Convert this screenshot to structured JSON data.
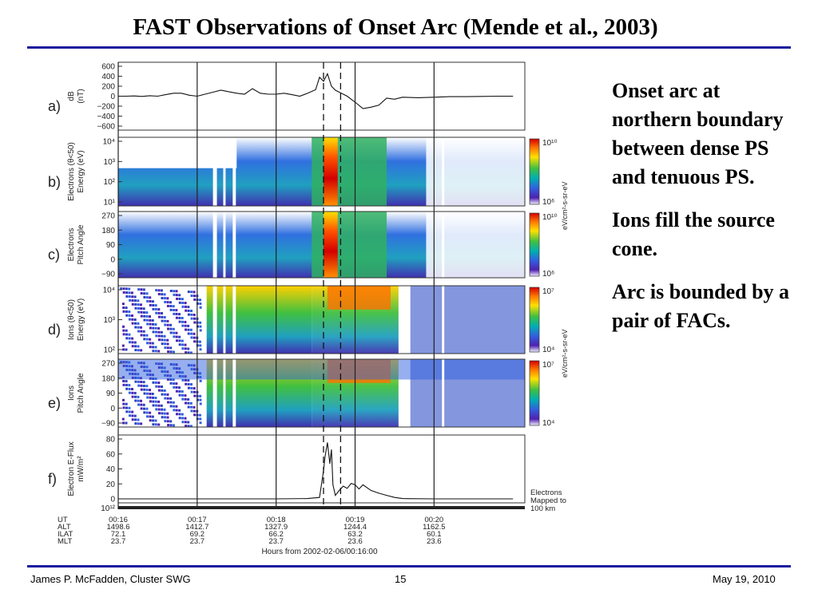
{
  "slide": {
    "title": "FAST Observations of Onset Arc (Mende et al., 2003)",
    "bullets": [
      "Onset arc at northern boundary between dense PS and tenuous PS.",
      "Ions fill the source cone.",
      "Arc is bounded by a pair of FACs."
    ],
    "footer": {
      "author": "James P. McFadden, Cluster SWG",
      "page": "15",
      "date": "May 19, 2010"
    }
  },
  "colors": {
    "rule": "#1a1aa0",
    "colorbar": [
      "#d40000",
      "#ff7a00",
      "#ffe000",
      "#40c040",
      "#00b0b0",
      "#3060e0",
      "#5020b0",
      "#ffffff"
    ]
  },
  "chart_data": {
    "type": "spectrogram",
    "x_unit": "UT",
    "x_ticks": [
      {
        "ut": "00:16",
        "alt": "1498.6",
        "ilat": "72.1",
        "mlt": "23.7"
      },
      {
        "ut": "00:17",
        "alt": "1412.7",
        "ilat": "69.2",
        "mlt": "23.7"
      },
      {
        "ut": "00:18",
        "alt": "1327.9",
        "ilat": "66.2",
        "mlt": "23.7"
      },
      {
        "ut": "00:19",
        "alt": "1244.4",
        "ilat": "63.2",
        "mlt": "23.6"
      },
      {
        "ut": "00:20",
        "alt": "1162.5",
        "ilat": "60.1",
        "mlt": "23.6"
      }
    ],
    "x_row_labels": [
      "UT",
      "ALT",
      "ILAT",
      "MLT"
    ],
    "x_axis_label": "Hours from 2002-02-06/00:16:00",
    "dashed_times": [
      "00:18:36",
      "00:18:49"
    ],
    "panels": [
      {
        "id": "a",
        "label": "a)",
        "type": "line",
        "ylabel": [
          "dB",
          "(nT)"
        ],
        "yticks": [
          "600",
          "400",
          "200",
          "0",
          "−200",
          "−400",
          "−600"
        ],
        "ylim": [
          -600,
          600
        ],
        "series": {
          "t_min": [
            0.0,
            0.1,
            0.2,
            0.3,
            0.4,
            0.5,
            0.6,
            0.7,
            0.8,
            0.9,
            1.0,
            1.1,
            1.2,
            1.3,
            1.4,
            1.5,
            1.6,
            1.7,
            1.8,
            1.9,
            2.0,
            2.1,
            2.2,
            2.3,
            2.4,
            2.5,
            2.55,
            2.6,
            2.65,
            2.7,
            2.75,
            2.8,
            2.9,
            3.0,
            3.1,
            3.2,
            3.3,
            3.4,
            3.5,
            3.6,
            3.8,
            4.0,
            4.2,
            4.4,
            4.6,
            4.8,
            5.0
          ],
          "dB": [
            0,
            0,
            5,
            -5,
            10,
            0,
            30,
            60,
            60,
            20,
            0,
            40,
            80,
            120,
            90,
            60,
            40,
            150,
            60,
            40,
            40,
            60,
            30,
            0,
            60,
            130,
            380,
            300,
            450,
            200,
            120,
            80,
            0,
            -120,
            -250,
            -220,
            -180,
            -40,
            -60,
            -20,
            -30,
            -20,
            -10,
            -10,
            -5,
            0,
            0
          ]
        }
      },
      {
        "id": "b",
        "label": "b)",
        "type": "spectrogram",
        "ylabel": [
          "Electrons (θ<50)",
          "Energy (eV)"
        ],
        "yticks": [
          "10⁴",
          "10³",
          "10²",
          "10¹"
        ],
        "ylim": [
          10,
          30000
        ],
        "colorbar": {
          "max": "10¹⁰",
          "min": "10⁶",
          "unit": "eV/cm²-s-sr-eV"
        }
      },
      {
        "id": "c",
        "label": "c)",
        "type": "spectrogram",
        "ylabel": [
          "Electrons",
          "Pitch Angle"
        ],
        "yticks": [
          "270",
          "180",
          "90",
          "0",
          "−90"
        ],
        "ylim": [
          -90,
          270
        ],
        "colorbar": {
          "max": "10¹⁰",
          "min": "10⁶"
        }
      },
      {
        "id": "d",
        "label": "d)",
        "type": "spectrogram",
        "ylabel": [
          "Ions (θ<50)",
          "Energy (eV)"
        ],
        "yticks": [
          "10⁴",
          "10³",
          "10²"
        ],
        "ylim": [
          100,
          30000
        ],
        "colorbar": {
          "max": "10⁷",
          "min": "10⁴",
          "unit": "eV/cm²-s-sr-eV"
        }
      },
      {
        "id": "e",
        "label": "e)",
        "type": "spectrogram",
        "ylabel": [
          "Ions",
          "Pitch Angle"
        ],
        "yticks": [
          "270",
          "180",
          "90",
          "0",
          "−90"
        ],
        "ylim": [
          -90,
          270
        ],
        "colorbar": {
          "max": "10⁷",
          "min": "10⁴"
        }
      },
      {
        "id": "f",
        "label": "f)",
        "type": "line",
        "ylabel": [
          "Electron E-Flux",
          "mW/m²"
        ],
        "yticks": [
          "80",
          "60",
          "40",
          "20",
          "0"
        ],
        "ylim": [
          0,
          85
        ],
        "note": [
          "Electrons",
          "Mapped to",
          "100 km"
        ],
        "series": {
          "t_min": [
            0.0,
            1.0,
            2.0,
            2.4,
            2.55,
            2.6,
            2.62,
            2.65,
            2.68,
            2.7,
            2.72,
            2.75,
            2.8,
            2.85,
            2.9,
            2.95,
            3.0,
            3.05,
            3.1,
            3.2,
            3.3,
            3.4,
            3.5,
            3.6,
            4.0,
            5.0
          ],
          "flux": [
            0,
            0,
            0,
            0.5,
            2,
            40,
            60,
            80,
            50,
            70,
            20,
            5,
            12,
            18,
            15,
            22,
            20,
            14,
            20,
            12,
            8,
            5,
            2,
            0.5,
            0,
            0
          ]
        }
      }
    ],
    "clipped_label": "10¹²"
  }
}
